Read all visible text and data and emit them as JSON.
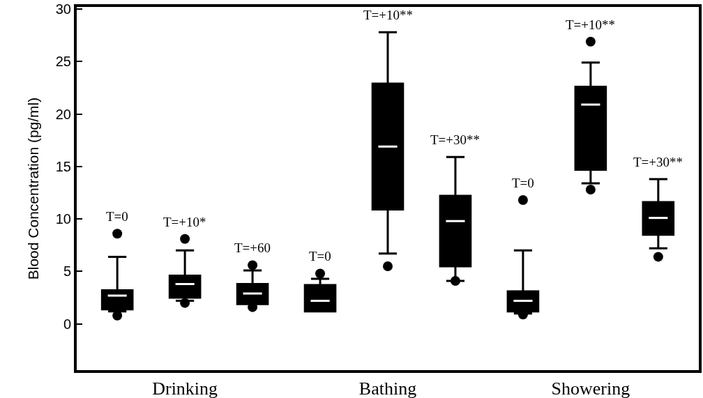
{
  "chart_data": {
    "type": "box",
    "ylabel": "Blood Concentration (pg/ml)",
    "categories": [
      null,
      "Drinking",
      null,
      null,
      "Bathing",
      null,
      null,
      "Showering",
      null
    ],
    "color": "#000000",
    "boxes": [
      {
        "low": 1.2,
        "q1": 1.4,
        "median": 2.7,
        "q3": 3.2,
        "high": 6.4,
        "outliers": [
          0.8,
          8.6
        ]
      },
      {
        "low": 2.2,
        "q1": 2.5,
        "median": 3.8,
        "q3": 4.6,
        "high": 7.0,
        "outliers": [
          2.0,
          8.1
        ]
      },
      {
        "low": 1.9,
        "q1": 1.9,
        "median": 2.9,
        "q3": 3.8,
        "high": 5.1,
        "outliers": [
          1.6,
          5.6
        ]
      },
      {
        "low": 1.2,
        "q1": 1.2,
        "median": 2.2,
        "q3": 3.7,
        "high": 4.3,
        "outliers": [
          4.8
        ]
      },
      {
        "low": 6.7,
        "q1": 10.9,
        "median": 16.9,
        "q3": 22.9,
        "high": 27.8,
        "outliers": [
          5.5
        ]
      },
      {
        "low": 4.1,
        "q1": 5.5,
        "median": 9.8,
        "q3": 12.2,
        "high": 15.9,
        "outliers": [
          4.1
        ]
      },
      {
        "low": 1.0,
        "q1": 1.2,
        "median": 2.2,
        "q3": 3.1,
        "high": 7.0,
        "outliers": [
          0.9,
          11.8
        ]
      },
      {
        "low": 13.4,
        "q1": 14.7,
        "median": 20.9,
        "q3": 22.6,
        "high": 24.9,
        "outliers": [
          12.8,
          26.9
        ]
      },
      {
        "low": 7.2,
        "q1": 8.5,
        "median": 10.1,
        "q3": 11.6,
        "high": 13.8,
        "outliers": [
          6.4
        ]
      }
    ],
    "annotations": [
      "T=0",
      "T=+10*",
      "T=+60",
      "T=0",
      "T=+10**",
      "T=+30**",
      "T=0",
      "T=+10**",
      "T=+30**"
    ],
    "ylim": [
      -4.4,
      30.2
    ],
    "yticks": [
      0,
      5,
      10,
      15,
      20,
      25,
      30
    ],
    "grid": false
  }
}
